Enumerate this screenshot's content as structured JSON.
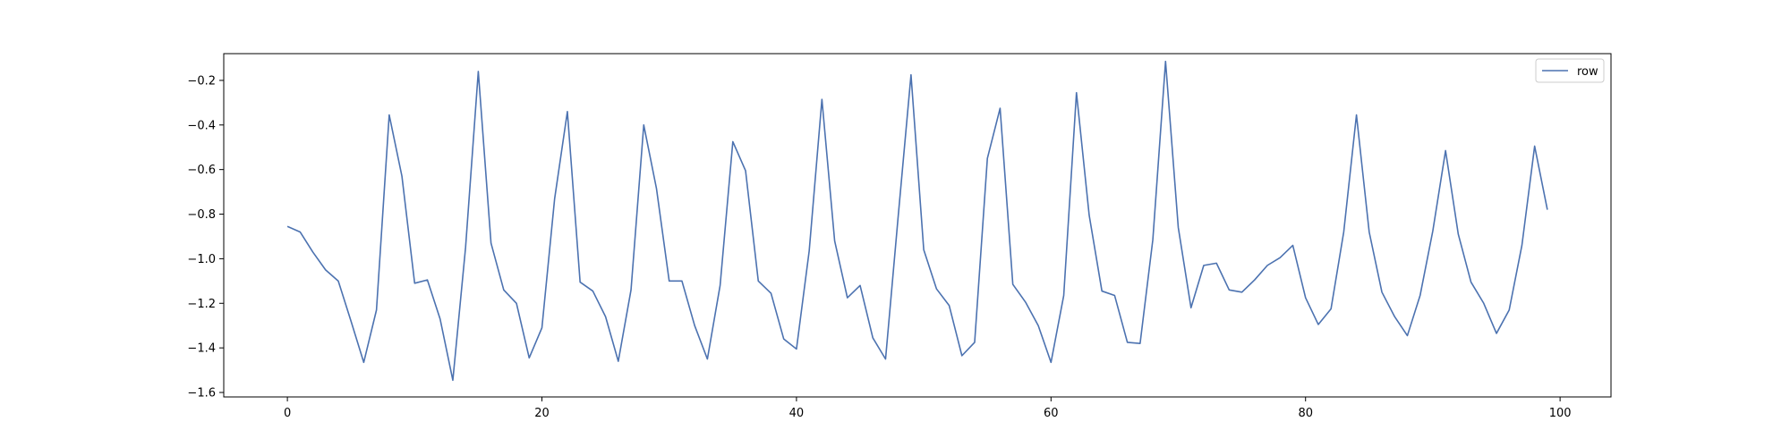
{
  "chart_data": {
    "type": "line",
    "title": "",
    "xlabel": "",
    "ylabel": "",
    "xlim": [
      -5,
      104
    ],
    "ylim": [
      -1.62,
      -0.08
    ],
    "xticks": [
      0,
      20,
      40,
      60,
      80,
      100
    ],
    "yticks": [
      -1.6,
      -1.4,
      -1.2,
      -1.0,
      -0.8,
      -0.6,
      -0.4,
      -0.2
    ],
    "xtick_labels": [
      "0",
      "20",
      "40",
      "60",
      "80",
      "100"
    ],
    "ytick_labels": [
      "−1.6",
      "−1.4",
      "−1.2",
      "−1.0",
      "−0.8",
      "−0.6",
      "−0.4",
      "−0.2"
    ],
    "grid": false,
    "legend_position": "top-right",
    "series": [
      {
        "name": "row",
        "color": "#4c72b0",
        "values": [
          -0.855,
          -0.88,
          -0.97,
          -1.05,
          -1.1,
          -1.28,
          -1.465,
          -1.23,
          -0.355,
          -0.63,
          -1.11,
          -1.095,
          -1.27,
          -1.545,
          -0.95,
          -0.16,
          -0.93,
          -1.14,
          -1.2,
          -1.445,
          -1.31,
          -0.73,
          -0.34,
          -1.105,
          -1.145,
          -1.26,
          -1.46,
          -1.14,
          -0.4,
          -0.685,
          -1.1,
          -1.1,
          -1.3,
          -1.45,
          -1.12,
          -0.475,
          -0.605,
          -1.1,
          -1.155,
          -1.36,
          -1.405,
          -0.965,
          -0.285,
          -0.92,
          -1.175,
          -1.12,
          -1.355,
          -1.45,
          -0.805,
          -0.175,
          -0.96,
          -1.135,
          -1.21,
          -1.435,
          -1.375,
          -0.55,
          -0.325,
          -1.115,
          -1.195,
          -1.3,
          -1.465,
          -1.165,
          -0.255,
          -0.805,
          -1.145,
          -1.165,
          -1.375,
          -1.38,
          -0.915,
          -0.115,
          -0.86,
          -1.22,
          -1.03,
          -1.02,
          -1.14,
          -1.15,
          -1.095,
          -1.03,
          -0.995,
          -0.94,
          -1.175,
          -1.295,
          -1.225,
          -0.88,
          -0.355,
          -0.88,
          -1.15,
          -1.26,
          -1.345,
          -1.165,
          -0.875,
          -0.515,
          -0.89,
          -1.105,
          -1.2,
          -1.335,
          -1.23,
          -0.94,
          -0.495,
          -0.78
        ]
      }
    ]
  }
}
